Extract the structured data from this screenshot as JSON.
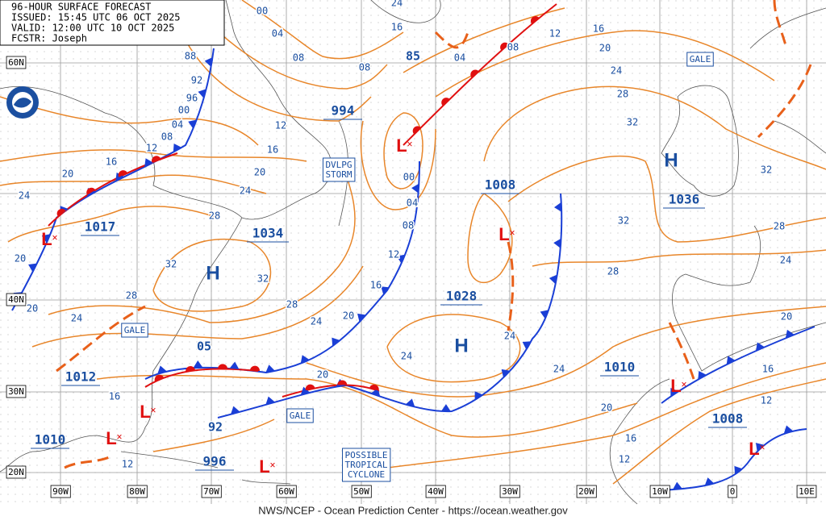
{
  "header": {
    "title": "96-HOUR SURFACE FORECAST",
    "issued": "ISSUED: 15:45 UTC 06 OCT 2025",
    "valid": "VALID: 12:00 UTC 10 OCT 2025",
    "forecaster": "FCSTR: Joseph"
  },
  "footer": "NWS/NCEP - Ocean Prediction Center - https://ocean.weather.gov",
  "latitude_labels": [
    "60N",
    "40N",
    "30N",
    "20N"
  ],
  "longitude_labels": [
    "90W",
    "80W",
    "70W",
    "60W",
    "50W",
    "40W",
    "30W",
    "20W",
    "10W",
    "0",
    "10E"
  ],
  "highs": [
    {
      "symbol": "H",
      "pressure": "1034"
    },
    {
      "symbol": "H",
      "pressure": "1036"
    },
    {
      "symbol": "H",
      "pressure": "1028"
    }
  ],
  "lows": [
    {
      "symbol": "L",
      "pressure": "1017"
    },
    {
      "symbol": "L",
      "pressure": "994"
    },
    {
      "symbol": "L",
      "pressure": "1008"
    },
    {
      "symbol": "L",
      "pressure": "1012"
    },
    {
      "symbol": "L",
      "pressure": "1010"
    },
    {
      "symbol": "L",
      "pressure": "996"
    },
    {
      "symbol": "L",
      "pressure": "1010"
    },
    {
      "symbol": "L",
      "pressure": "1008"
    }
  ],
  "warnings": [
    [
      "GALE"
    ],
    [
      "GALE"
    ],
    [
      "GALE"
    ],
    [
      "DVLPG",
      "STORM"
    ],
    [
      "POSSIBLE",
      "TROPICAL",
      "CYCLONE"
    ]
  ],
  "isobar_labels": [
    "00",
    "04",
    "08",
    "88",
    "92",
    "96",
    "00",
    "04",
    "08",
    "12",
    "16",
    "20",
    "24",
    "20",
    "20",
    "12",
    "16",
    "20",
    "24",
    "28",
    "32",
    "32",
    "28",
    "24",
    "28",
    "24",
    "20",
    "16",
    "12",
    "08",
    "04",
    "00",
    "08",
    "04",
    "08",
    "12",
    "16",
    "20",
    "24",
    "28",
    "32",
    "32",
    "28",
    "32",
    "28",
    "24",
    "20",
    "16",
    "12",
    "24",
    "24",
    "24",
    "20",
    "16",
    "12",
    "16",
    "12",
    "20",
    "24",
    "16",
    "85",
    "05",
    "92"
  ]
}
